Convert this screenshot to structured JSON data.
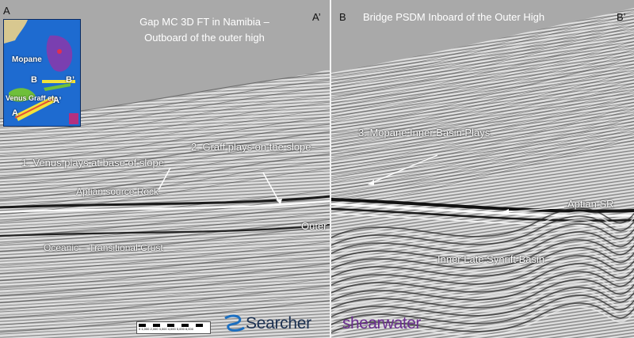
{
  "left_panel": {
    "corner_left": "A",
    "corner_right": "A’",
    "title": "Gap MC 3D FT in Namibia – Outboard of the outer high",
    "annotations": {
      "venus": "1. Venus plays at base of slope",
      "graff": "2. Graff plays on the slope",
      "aptian": "Aptian source Rock",
      "oceanic": "Oceanic – Transitional Crust",
      "outer_high": "Outer High"
    },
    "inset_map": {
      "labels": {
        "mopane": "Mopane",
        "b": "B",
        "b_prime": "B’",
        "venus_graff": "Venus  Graff etc",
        "a": "A",
        "a_prime": "A’"
      },
      "colors": {
        "sea": "#1e6bd0",
        "block_purple": "#7a3fb0",
        "block_green": "#6fbf3a",
        "line_yellow": "#f2e23a",
        "line_red": "#e0503a"
      }
    },
    "scale_bar": {
      "values": "0  1,000  2,000  3,000  4,000  5,000  6,000",
      "unit": "metres"
    },
    "logo": {
      "text": "Searcher"
    }
  },
  "right_panel": {
    "corner_left": "B",
    "corner_right": "B’",
    "title": "Bridge PSDM Inboard of the Outer High",
    "annotations": {
      "mopane": "3. Mopane Inner Basin Plays",
      "aptian_sr": "Aptian SR",
      "inner_synrift": "Inner Late Synrift Basin"
    },
    "logo": {
      "text": "shearwater"
    }
  },
  "colors": {
    "sky_gray": "#a9a9a9",
    "seismic_light": "#d2d2d2",
    "seismic_dark": "#2a2a2a",
    "logo_purple": "#6b2f8f",
    "logo_navy": "#1b3050"
  }
}
